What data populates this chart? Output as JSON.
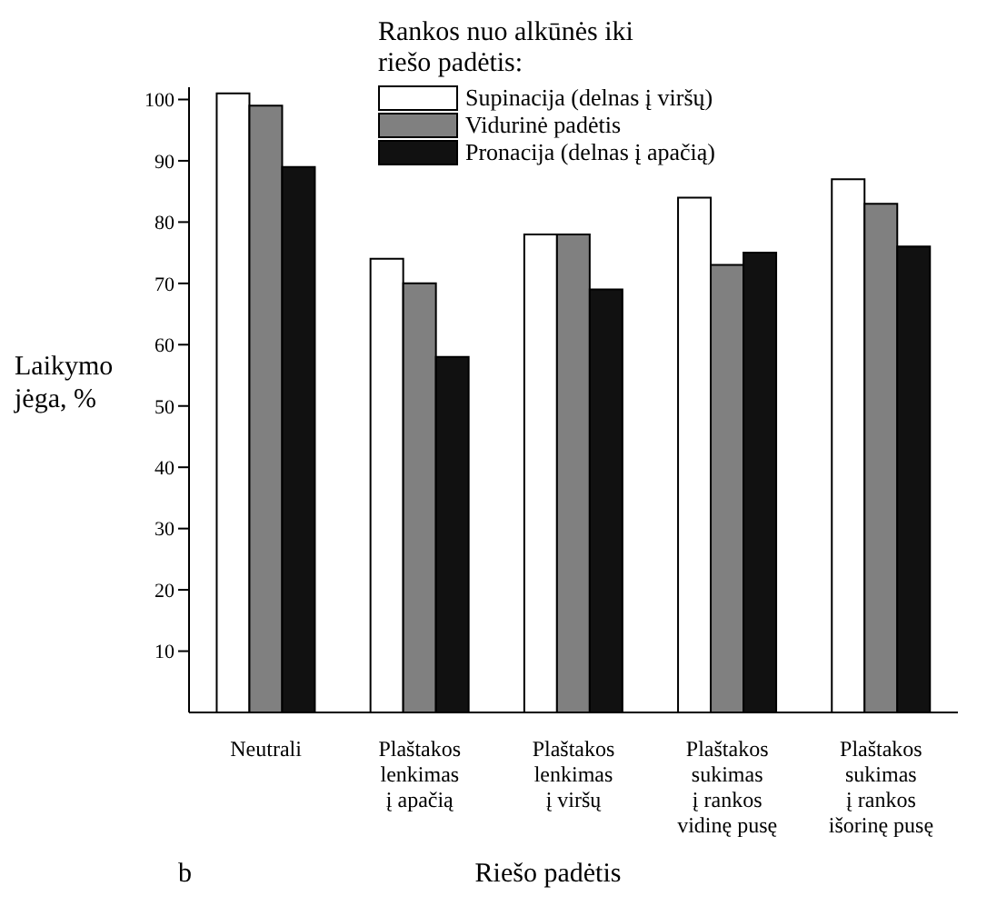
{
  "chart_data": {
    "type": "bar",
    "legend_title": "Rankos nuo alkūnės iki\nriešo padėtis:",
    "xlabel": "Riešo padėtis",
    "ylabel": "Laikymo\njėga, %",
    "annotations": [
      "b"
    ],
    "categories": [
      "Neutrali",
      "Plaštakos\nlenkimas\nį apačią",
      "Plaštakos\nlenkimas\nį viršų",
      "Plaštakos\nsukimas\nį rankos\nvidinę pusę",
      "Plaštakos\nsukimas\nį rankos\nišorinę pusę"
    ],
    "series": [
      {
        "name": "Supinacija (delnas į viršų)",
        "color": "#ffffff",
        "values": [
          101,
          74,
          78,
          84,
          87
        ]
      },
      {
        "name": "Vidurinė padėtis",
        "color": "#808080",
        "values": [
          99,
          70,
          78,
          73,
          83
        ]
      },
      {
        "name": "Pronacija (delnas į apačią)",
        "color": "#111111",
        "values": [
          89,
          58,
          69,
          75,
          76
        ]
      }
    ],
    "ylim": [
      0,
      102
    ],
    "yticks": [
      10,
      20,
      30,
      40,
      50,
      60,
      70,
      80,
      90,
      100
    ],
    "grid": false,
    "legend": "top"
  }
}
